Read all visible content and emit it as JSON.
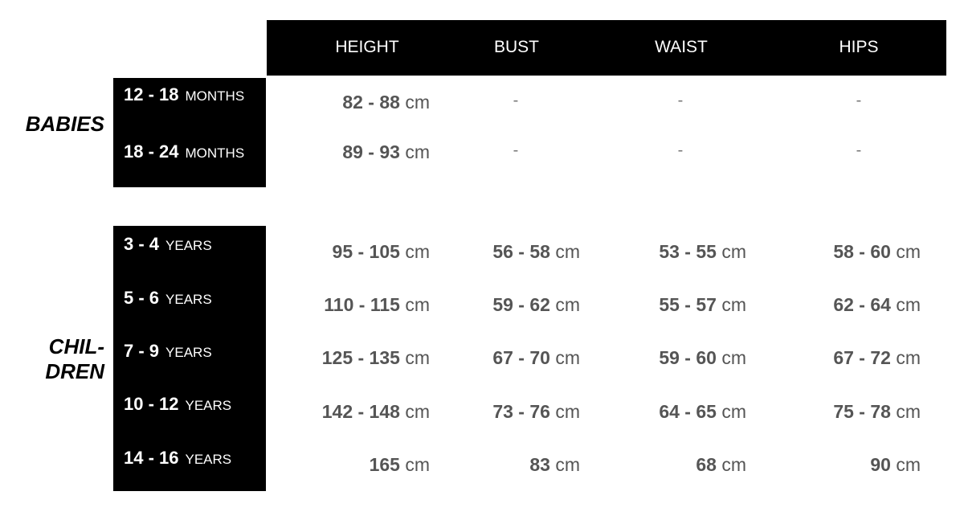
{
  "columns": [
    "HEIGHT",
    "BUST",
    "WAIST",
    "HIPS"
  ],
  "groups": [
    {
      "name": "BABIES",
      "rows": [
        {
          "num": "12 - 18",
          "unit": "MONTHS",
          "values": [
            "82 - 88",
            "-",
            "-",
            "-"
          ]
        },
        {
          "num": "18 - 24",
          "unit": "MONTHS",
          "values": [
            "89 - 93",
            "-",
            "-",
            "-"
          ]
        }
      ]
    },
    {
      "name_line1": "CHIL-",
      "name_line2": "DREN",
      "rows": [
        {
          "num": "3 - 4",
          "unit": "YEARS",
          "values": [
            "95 - 105",
            "56 - 58",
            "53 - 55",
            "58 - 60"
          ]
        },
        {
          "num": "5 - 6",
          "unit": "YEARS",
          "values": [
            "110 - 115",
            "59 - 62",
            "55 - 57",
            "62 - 64"
          ]
        },
        {
          "num": "7 - 9",
          "unit": "YEARS",
          "values": [
            "125 - 135",
            "67 - 70",
            "59 - 60",
            "67 - 72"
          ]
        },
        {
          "num": "10 - 12",
          "unit": "YEARS",
          "values": [
            "142 - 148",
            "73 - 76",
            "64 - 65",
            "75 - 78"
          ]
        },
        {
          "num": "14 - 16",
          "unit": "YEARS",
          "values": [
            "165",
            "83",
            "68",
            "90"
          ]
        }
      ]
    }
  ],
  "unit_cm": "cm"
}
